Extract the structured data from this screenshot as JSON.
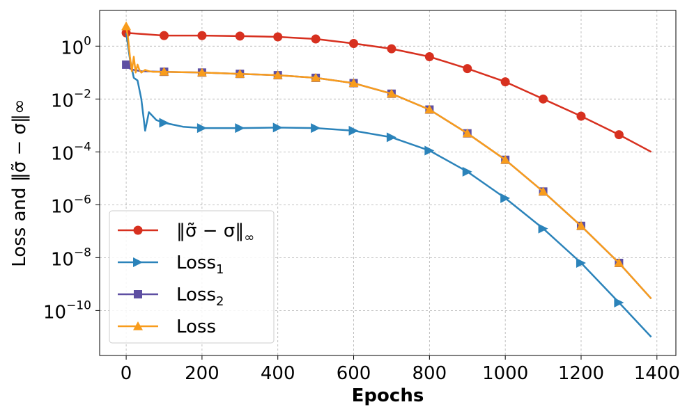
{
  "chart_data": {
    "type": "line",
    "title": "",
    "xlabel": "Epochs",
    "ylabel": "Loss and ‖σ̃ − σ‖∞",
    "x_scale": "linear",
    "y_scale": "log",
    "xlim": [
      -70,
      1450
    ],
    "ylim_log10": [
      -11.7,
      1.35
    ],
    "x_ticks": [
      0,
      200,
      400,
      600,
      800,
      1000,
      1200,
      1400
    ],
    "x_tick_labels": [
      "0",
      "200",
      "400",
      "600",
      "800",
      "1000",
      "1200",
      "1400"
    ],
    "y_ticks_log10": [
      0,
      -2,
      -4,
      -6,
      -8,
      -10
    ],
    "y_tick_labels": [
      {
        "base": "10",
        "exp": "0"
      },
      {
        "base": "10",
        "exp": "−2"
      },
      {
        "base": "10",
        "exp": "−4"
      },
      {
        "base": "10",
        "exp": "−6"
      },
      {
        "base": "10",
        "exp": "−8"
      },
      {
        "base": "10",
        "exp": "−10"
      }
    ],
    "grid": true,
    "legend_position": "bottom-left",
    "colors": {
      "sigma": "#d7301f",
      "loss1": "#2b83ba",
      "loss2": "#5e4fa2",
      "loss": "#f89c1c"
    },
    "series": [
      {
        "key": "sigma",
        "name": "‖σ̃ − σ‖∞",
        "legend_main": "‖σ̃ − σ‖",
        "legend_sub": "∞",
        "marker": "circle",
        "x": [
          0,
          100,
          200,
          300,
          400,
          500,
          600,
          700,
          800,
          900,
          1000,
          1100,
          1200,
          1300,
          1385
        ],
        "log10_y": [
          0.5,
          0.4,
          0.4,
          0.38,
          0.35,
          0.27,
          0.1,
          -0.1,
          -0.4,
          -0.85,
          -1.35,
          -2.0,
          -2.65,
          -3.35,
          -4.0
        ],
        "marker_every": [
          1,
          1,
          1,
          1,
          1,
          1,
          1,
          1,
          1,
          1,
          1,
          1,
          1,
          1,
          0
        ]
      },
      {
        "key": "loss1",
        "name": "Loss1",
        "legend_main": "Loss",
        "legend_sub": "1",
        "marker": "triangle-right",
        "x": [
          0,
          10,
          20,
          30,
          40,
          50,
          60,
          80,
          100,
          150,
          200,
          300,
          400,
          500,
          600,
          700,
          800,
          900,
          1000,
          1100,
          1200,
          1300,
          1385
        ],
        "log10_y": [
          0.5,
          -0.5,
          -1.2,
          -1.3,
          -2.0,
          -3.2,
          -2.5,
          -2.8,
          -2.9,
          -3.05,
          -3.1,
          -3.1,
          -3.08,
          -3.1,
          -3.2,
          -3.45,
          -3.95,
          -4.75,
          -5.75,
          -6.9,
          -8.2,
          -9.7,
          -11.0
        ],
        "marker_every": [
          0,
          0,
          0,
          0,
          0,
          0,
          0,
          0,
          1,
          0,
          1,
          1,
          1,
          1,
          1,
          1,
          1,
          1,
          1,
          1,
          1,
          1,
          0
        ]
      },
      {
        "key": "loss2",
        "name": "Loss2",
        "legend_main": "Loss",
        "legend_sub": "2",
        "marker": "square",
        "x": [
          0,
          10,
          20,
          40,
          100,
          200,
          300,
          400,
          500,
          600,
          700,
          800,
          900,
          1000,
          1100,
          1200,
          1300,
          1385
        ],
        "log10_y": [
          -0.7,
          -0.85,
          -0.9,
          -0.95,
          -0.97,
          -1.0,
          -1.05,
          -1.1,
          -1.2,
          -1.4,
          -1.8,
          -2.4,
          -3.3,
          -4.3,
          -5.5,
          -6.8,
          -8.2,
          -9.55
        ],
        "marker_every": [
          1,
          0,
          0,
          0,
          1,
          1,
          1,
          1,
          1,
          1,
          1,
          1,
          1,
          1,
          1,
          1,
          1,
          0
        ]
      },
      {
        "key": "loss",
        "name": "Loss",
        "legend_main": "Loss",
        "legend_sub": "",
        "marker": "triangle-up",
        "x": [
          0,
          5,
          10,
          15,
          20,
          25,
          30,
          35,
          40,
          50,
          60,
          70,
          100,
          200,
          300,
          400,
          500,
          600,
          700,
          800,
          900,
          1000,
          1100,
          1200,
          1300,
          1385
        ],
        "log10_y": [
          0.75,
          0.3,
          -0.4,
          -0.95,
          -0.4,
          -1.0,
          -0.7,
          -0.9,
          -1.0,
          -0.9,
          -0.95,
          -0.97,
          -0.97,
          -1.0,
          -1.05,
          -1.1,
          -1.2,
          -1.4,
          -1.8,
          -2.4,
          -3.3,
          -4.3,
          -5.5,
          -6.8,
          -8.2,
          -9.55
        ],
        "marker_every": [
          1,
          0,
          0,
          0,
          0,
          0,
          0,
          0,
          0,
          0,
          0,
          0,
          1,
          1,
          1,
          1,
          1,
          1,
          1,
          1,
          1,
          1,
          1,
          1,
          1,
          0
        ]
      }
    ]
  }
}
